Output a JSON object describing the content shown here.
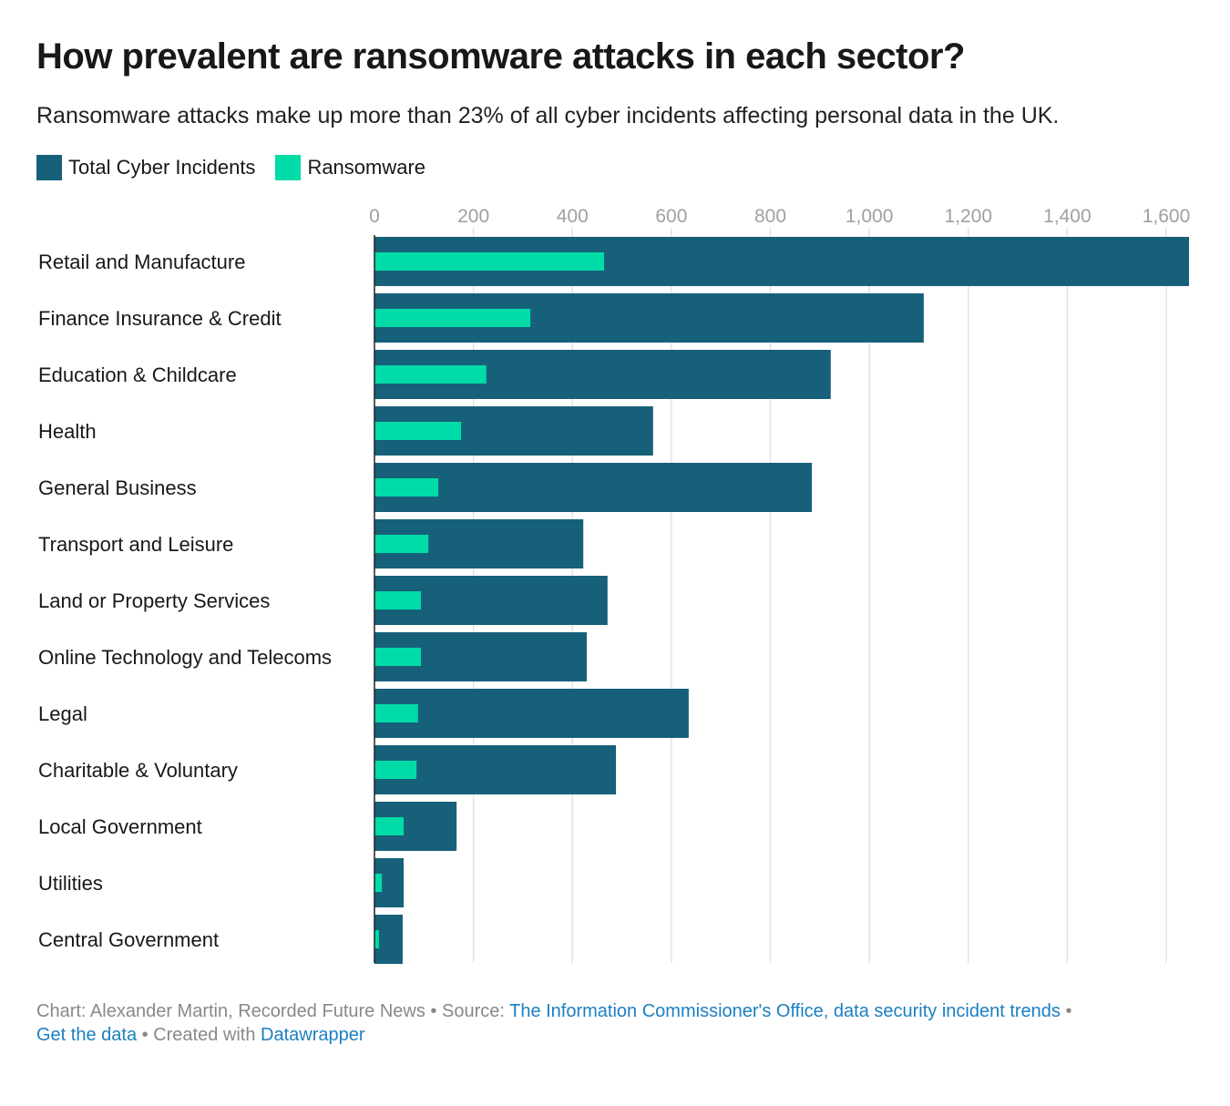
{
  "title": "How prevalent are ransomware attacks in each sector?",
  "subtitle": "Ransomware attacks make up more than 23% of all cyber incidents affecting personal data in the UK.",
  "footer": {
    "chart": "Chart: Alexander Martin, Recorded Future News",
    "sep": " • ",
    "source_label": "Source: ",
    "source_link": "The Information Commissioner's Office, data security incident trends",
    "get_data": "Get the data",
    "created": "Created with ",
    "datawrapper": "Datawrapper"
  },
  "chart_data": {
    "type": "bar",
    "orientation": "horizontal",
    "categories": [
      "Retail and Manufacture",
      "Finance Insurance & Credit",
      "Education & Childcare",
      "Health",
      "General Business",
      "Transport and Leisure",
      "Land or Property Services",
      "Online Technology and Telecoms",
      "Legal",
      "Charitable & Voluntary",
      "Local Government",
      "Utilities",
      "Central Government"
    ],
    "series": [
      {
        "name": "Total Cyber Incidents",
        "color": "#17607a",
        "values": [
          1646,
          1110,
          922,
          563,
          884,
          422,
          471,
          429,
          635,
          488,
          166,
          59,
          57
        ]
      },
      {
        "name": "Ransomware",
        "color": "#00dca7",
        "values": [
          464,
          315,
          226,
          175,
          129,
          109,
          94,
          94,
          88,
          85,
          59,
          15,
          9
        ]
      }
    ],
    "xticks": [
      0,
      200,
      400,
      600,
      800,
      1000,
      1200,
      1400,
      1600
    ],
    "xtick_labels": [
      "0",
      "200",
      "400",
      "600",
      "800",
      "1,000",
      "1,200",
      "1,400",
      "1,600"
    ],
    "xlim": [
      0,
      1646
    ],
    "grid": true,
    "legend": "top-left"
  }
}
